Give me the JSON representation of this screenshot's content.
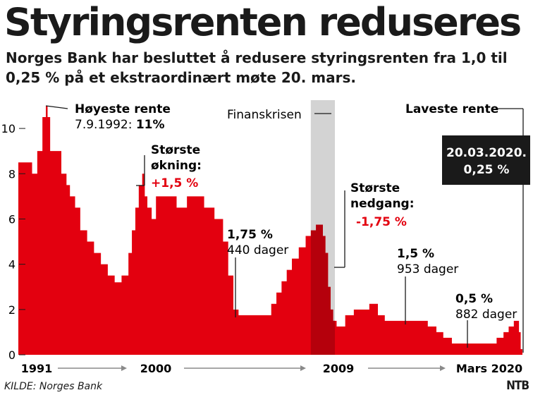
{
  "title": "Styringsrenten reduseres",
  "subtitle": "Norges Bank har besluttet å redusere styringsrenten fra 1,0 til 0,25 % på et ekstraordinært møte 20. mars.",
  "source": "KILDE: Norges Bank",
  "logo": "NTB",
  "colors": {
    "bar": "#e3000f",
    "bar_dark": "#b5000c",
    "crisis_band": "#d3d3d3",
    "red_text": "#e3000f",
    "callout_bg": "#1a1a1a"
  },
  "chart_data": {
    "type": "area",
    "title": "Styringsrenten reduseres",
    "xlabel": "",
    "ylabel": "",
    "xlim": [
      1991.0,
      2020.3
    ],
    "ylim": [
      0,
      11
    ],
    "yticks": [
      0,
      2,
      4,
      6,
      8,
      10
    ],
    "xaxis_labels": [
      "1991",
      "2000",
      "2009",
      "Mars 2020"
    ],
    "series": [
      {
        "x": [
          1991.0,
          1991.5,
          1991.8,
          1992.1,
          1992.4,
          1992.6,
          1992.7,
          1992.85,
          1993.0,
          1993.3,
          1993.5,
          1993.8,
          1994.0,
          1994.3,
          1994.6,
          1995.0,
          1995.4,
          1995.8,
          1996.2,
          1996.6,
          1997.0,
          1997.4,
          1997.6,
          1997.8,
          1998.0,
          1998.2,
          1998.35,
          1998.5,
          1998.75,
          1999.0,
          1999.3,
          1999.6,
          1999.9,
          2000.2,
          2000.5,
          2000.8,
          2001.3,
          2001.8,
          2002.4,
          2002.9,
          2003.2,
          2003.5,
          2003.8,
          2004.2,
          2004.8,
          2005.3,
          2005.7,
          2006.0,
          2006.3,
          2006.6,
          2006.9,
          2007.3,
          2007.7,
          2008.0,
          2008.3,
          2008.5,
          2008.7,
          2008.85,
          2009.0,
          2009.15,
          2009.3,
          2009.5,
          2009.7,
          2010.0,
          2010.5,
          2011.0,
          2011.4,
          2011.9,
          2012.3,
          2012.8,
          2013.5,
          2014.3,
          2014.8,
          2015.3,
          2015.7,
          2016.2,
          2016.8,
          2017.5,
          2018.2,
          2018.8,
          2019.2,
          2019.5,
          2019.8,
          2020.0,
          2020.1,
          2020.2,
          2020.25
        ],
        "y": [
          8.5,
          8.5,
          8.0,
          9.0,
          10.5,
          11.0,
          10.5,
          9.0,
          9.0,
          9.0,
          8.0,
          7.5,
          7.0,
          6.5,
          5.5,
          5.0,
          4.5,
          4.0,
          3.5,
          3.2,
          3.5,
          4.5,
          5.5,
          6.5,
          7.5,
          8.0,
          7.0,
          6.5,
          6.0,
          7.0,
          7.0,
          7.0,
          7.0,
          6.5,
          6.5,
          7.0,
          7.0,
          6.5,
          6.0,
          5.0,
          3.5,
          2.0,
          1.75,
          1.75,
          1.75,
          1.75,
          2.25,
          2.75,
          3.25,
          3.75,
          4.25,
          4.75,
          5.25,
          5.5,
          5.75,
          5.75,
          5.25,
          4.5,
          3.0,
          2.0,
          1.5,
          1.25,
          1.25,
          1.75,
          2.0,
          2.0,
          2.25,
          1.75,
          1.5,
          1.5,
          1.5,
          1.5,
          1.25,
          1.0,
          0.75,
          0.5,
          0.5,
          0.5,
          0.5,
          0.75,
          1.0,
          1.25,
          1.5,
          1.5,
          1.0,
          0.25,
          0.25
        ]
      }
    ],
    "annotations": {
      "highest": {
        "title": "Høyeste rente",
        "date": "7.9.1992: ",
        "value": "11%",
        "x": 1992.6,
        "y": 11.0
      },
      "largest_increase": {
        "line1": "Største",
        "line2": "økning:",
        "value": "+1,5 %",
        "x": 1998.2,
        "y": 8.0
      },
      "crisis": {
        "label": "Finanskrisen",
        "x0": 2008.0,
        "x1": 2009.4
      },
      "largest_decrease": {
        "line1": "Største",
        "line2": "nedgang:",
        "value": "-1,75 %",
        "x": 2009.0,
        "y": 3.8
      },
      "lowest": {
        "label": "Laveste rente",
        "line1": "20.03.2020.",
        "line2": "0,25 %",
        "x": 2020.25,
        "y": 0.25
      },
      "period_1": {
        "value": "1,75 %",
        "days": "440 dager"
      },
      "period_2": {
        "value": "1,5 %",
        "days": "953 dager"
      },
      "period_3": {
        "value": "0,5 %",
        "days": "882 dager"
      }
    }
  }
}
